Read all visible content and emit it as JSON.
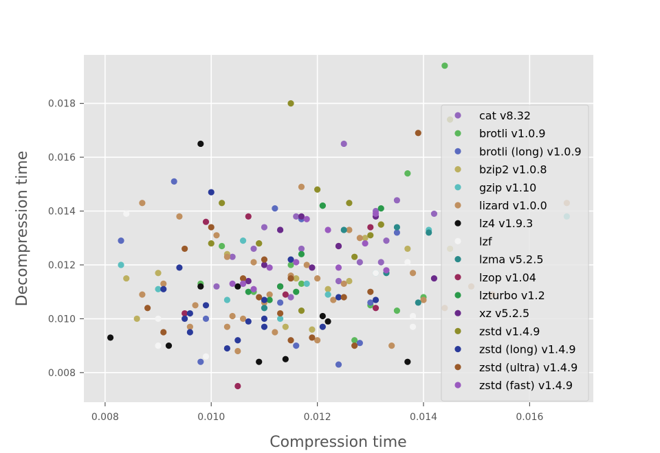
{
  "chart_data": {
    "type": "scatter",
    "title": "",
    "xlabel": "Compression time",
    "ylabel": "Decompression time",
    "xlim": [
      0.0076,
      0.0172
    ],
    "ylim": [
      0.0069,
      0.0198
    ],
    "xticks": [
      0.008,
      0.01,
      0.012,
      0.014,
      0.016
    ],
    "xtick_labels": [
      "0.008",
      "0.010",
      "0.012",
      "0.014",
      "0.016"
    ],
    "yticks": [
      0.008,
      0.01,
      0.012,
      0.014,
      0.016,
      0.018
    ],
    "ytick_labels": [
      "0.008",
      "0.010",
      "0.012",
      "0.014",
      "0.016",
      "0.018"
    ],
    "grid": true,
    "legend_position": "right",
    "series": [
      {
        "name": "cat v8.32",
        "color": "#9467bd",
        "points": [
          [
            0.0125,
            0.0165
          ],
          [
            0.011,
            0.0134
          ],
          [
            0.0113,
            0.0133
          ],
          [
            0.0116,
            0.0138
          ],
          [
            0.0108,
            0.0126
          ],
          [
            0.0131,
            0.014
          ],
          [
            0.0135,
            0.0144
          ],
          [
            0.0142,
            0.0139
          ],
          [
            0.0104,
            0.0123
          ],
          [
            0.0117,
            0.0126
          ],
          [
            0.0132,
            0.0121
          ],
          [
            0.0124,
            0.0114
          ],
          [
            0.0115,
            0.0108
          ],
          [
            0.0106,
            0.0113
          ],
          [
            0.0133,
            0.0129
          ],
          [
            0.0119,
            0.0119
          ],
          [
            0.0128,
            0.0121
          ],
          [
            0.0101,
            0.0112
          ]
        ]
      },
      {
        "name": "brotli v1.0.9",
        "color": "#5cb85c",
        "points": [
          [
            0.0144,
            0.0194
          ],
          [
            0.0137,
            0.0154
          ],
          [
            0.0121,
            0.0142
          ],
          [
            0.0102,
            0.0127
          ],
          [
            0.0115,
            0.012
          ],
          [
            0.0108,
            0.011
          ],
          [
            0.0127,
            0.0092
          ],
          [
            0.0135,
            0.0103
          ],
          [
            0.0098,
            0.0113
          ],
          [
            0.0117,
            0.0113
          ],
          [
            0.013,
            0.0105
          ],
          [
            0.014,
            0.0108
          ]
        ]
      },
      {
        "name": "brotli (long) v1.0.9",
        "color": "#5b6bbf",
        "points": [
          [
            0.0093,
            0.0151
          ],
          [
            0.0083,
            0.0129
          ],
          [
            0.0112,
            0.0141
          ],
          [
            0.0098,
            0.0084
          ],
          [
            0.0117,
            0.0137
          ],
          [
            0.0135,
            0.0132
          ],
          [
            0.0116,
            0.009
          ],
          [
            0.0124,
            0.0083
          ],
          [
            0.0128,
            0.0091
          ],
          [
            0.0113,
            0.0106
          ],
          [
            0.013,
            0.0106
          ],
          [
            0.0099,
            0.01
          ]
        ]
      },
      {
        "name": "bzip2 v1.0.8",
        "color": "#bcb060",
        "points": [
          [
            0.0084,
            0.0115
          ],
          [
            0.0086,
            0.01
          ],
          [
            0.009,
            0.0117
          ],
          [
            0.0103,
            0.0124
          ],
          [
            0.0109,
            0.0128
          ],
          [
            0.0116,
            0.0115
          ],
          [
            0.0122,
            0.0111
          ],
          [
            0.0129,
            0.013
          ],
          [
            0.0137,
            0.0126
          ],
          [
            0.0145,
            0.0126
          ],
          [
            0.0119,
            0.0096
          ],
          [
            0.0114,
            0.0097
          ],
          [
            0.0126,
            0.0114
          ],
          [
            0.0132,
            0.0135
          ]
        ]
      },
      {
        "name": "gzip v1.10",
        "color": "#5bbfbf",
        "points": [
          [
            0.0083,
            0.012
          ],
          [
            0.009,
            0.0111
          ],
          [
            0.0106,
            0.0129
          ],
          [
            0.0103,
            0.0107
          ],
          [
            0.0113,
            0.01
          ],
          [
            0.0122,
            0.0109
          ],
          [
            0.0131,
            0.0117
          ],
          [
            0.0141,
            0.0133
          ],
          [
            0.0167,
            0.0138
          ],
          [
            0.011,
            0.0104
          ],
          [
            0.0118,
            0.0113
          ]
        ]
      },
      {
        "name": "lizard v1.0.0",
        "color": "#c09060",
        "points": [
          [
            0.0087,
            0.0143
          ],
          [
            0.0094,
            0.0138
          ],
          [
            0.0087,
            0.0109
          ],
          [
            0.0091,
            0.0113
          ],
          [
            0.0097,
            0.0105
          ],
          [
            0.0103,
            0.0123
          ],
          [
            0.0104,
            0.0101
          ],
          [
            0.0106,
            0.01
          ],
          [
            0.0103,
            0.0097
          ],
          [
            0.011,
            0.0106
          ],
          [
            0.0112,
            0.0095
          ],
          [
            0.0115,
            0.0116
          ],
          [
            0.0117,
            0.0149
          ],
          [
            0.012,
            0.0115
          ],
          [
            0.0123,
            0.0107
          ],
          [
            0.0125,
            0.0113
          ],
          [
            0.0128,
            0.013
          ],
          [
            0.0134,
            0.009
          ],
          [
            0.0138,
            0.0117
          ],
          [
            0.0144,
            0.0104
          ],
          [
            0.0149,
            0.0112
          ],
          [
            0.0153,
            0.0109
          ],
          [
            0.0096,
            0.0097
          ],
          [
            0.0101,
            0.0131
          ],
          [
            0.0108,
            0.0121
          ],
          [
            0.0118,
            0.012
          ],
          [
            0.0126,
            0.0133
          ],
          [
            0.014,
            0.0107
          ],
          [
            0.0111,
            0.0109
          ],
          [
            0.0105,
            0.0088
          ],
          [
            0.012,
            0.0092
          ],
          [
            0.0167,
            0.0143
          ]
        ]
      },
      {
        "name": "lz4 v1.9.3",
        "color": "#111111",
        "points": [
          [
            0.0081,
            0.0093
          ],
          [
            0.0092,
            0.009
          ],
          [
            0.0098,
            0.0165
          ],
          [
            0.0098,
            0.0112
          ],
          [
            0.0109,
            0.0084
          ],
          [
            0.0114,
            0.0085
          ],
          [
            0.0121,
            0.0101
          ],
          [
            0.0122,
            0.0099
          ],
          [
            0.0137,
            0.0084
          ],
          [
            0.0105,
            0.0112
          ],
          [
            0.0113,
            0.0112
          ]
        ]
      },
      {
        "name": "lzf",
        "color": "#f4f4f4",
        "points": [
          [
            0.0084,
            0.0139
          ],
          [
            0.009,
            0.01
          ],
          [
            0.009,
            0.009
          ],
          [
            0.0099,
            0.0086
          ],
          [
            0.0138,
            0.0101
          ],
          [
            0.0138,
            0.0097
          ],
          [
            0.0131,
            0.0117
          ],
          [
            0.0137,
            0.0121
          ]
        ]
      },
      {
        "name": "lzma v5.2.5",
        "color": "#2a8a8a",
        "points": [
          [
            0.0139,
            0.0106
          ],
          [
            0.0141,
            0.0132
          ],
          [
            0.0135,
            0.0134
          ],
          [
            0.0125,
            0.0133
          ],
          [
            0.011,
            0.0104
          ],
          [
            0.0133,
            0.0117
          ]
        ]
      },
      {
        "name": "lzop v1.04",
        "color": "#9a2a5a",
        "points": [
          [
            0.0105,
            0.0075
          ],
          [
            0.0099,
            0.0136
          ],
          [
            0.0107,
            0.0138
          ],
          [
            0.0095,
            0.0102
          ],
          [
            0.0114,
            0.0109
          ],
          [
            0.0124,
            0.0127
          ],
          [
            0.013,
            0.0134
          ],
          [
            0.0131,
            0.0104
          ]
        ]
      },
      {
        "name": "lzturbo v1.2",
        "color": "#2a9a4a",
        "points": [
          [
            0.0121,
            0.0142
          ],
          [
            0.0117,
            0.0124
          ],
          [
            0.0132,
            0.0141
          ],
          [
            0.0111,
            0.0107
          ],
          [
            0.0116,
            0.011
          ],
          [
            0.0107,
            0.011
          ],
          [
            0.0113,
            0.0112
          ]
        ]
      },
      {
        "name": "xz v5.2.5",
        "color": "#6a2a8a",
        "points": [
          [
            0.0117,
            0.0138
          ],
          [
            0.0113,
            0.0133
          ],
          [
            0.0107,
            0.0114
          ],
          [
            0.011,
            0.012
          ],
          [
            0.0119,
            0.0119
          ],
          [
            0.0124,
            0.0127
          ],
          [
            0.0131,
            0.0138
          ],
          [
            0.0142,
            0.0115
          ]
        ]
      },
      {
        "name": "zstd v1.4.9",
        "color": "#8e8e2a",
        "points": [
          [
            0.0115,
            0.018
          ],
          [
            0.0145,
            0.0174
          ],
          [
            0.0102,
            0.0143
          ],
          [
            0.0126,
            0.0143
          ],
          [
            0.012,
            0.0148
          ],
          [
            0.01,
            0.0128
          ],
          [
            0.0109,
            0.0128
          ],
          [
            0.0127,
            0.0123
          ],
          [
            0.0132,
            0.0135
          ],
          [
            0.013,
            0.0131
          ],
          [
            0.0117,
            0.0103
          ]
        ]
      },
      {
        "name": "zstd (long) v1.4.9",
        "color": "#2a3a9a",
        "points": [
          [
            0.01,
            0.0147
          ],
          [
            0.0094,
            0.0119
          ],
          [
            0.0091,
            0.0111
          ],
          [
            0.0096,
            0.0102
          ],
          [
            0.0096,
            0.0095
          ],
          [
            0.0099,
            0.0105
          ],
          [
            0.0103,
            0.0089
          ],
          [
            0.0105,
            0.0092
          ],
          [
            0.0107,
            0.0099
          ],
          [
            0.011,
            0.01
          ],
          [
            0.011,
            0.0107
          ],
          [
            0.0115,
            0.0122
          ],
          [
            0.0121,
            0.0097
          ],
          [
            0.0124,
            0.0108
          ],
          [
            0.0131,
            0.0107
          ],
          [
            0.011,
            0.0097
          ],
          [
            0.0095,
            0.01
          ]
        ]
      },
      {
        "name": "zstd (ultra) v1.4.9",
        "color": "#9a5a2a",
        "points": [
          [
            0.0139,
            0.0169
          ],
          [
            0.01,
            0.0134
          ],
          [
            0.0095,
            0.0126
          ],
          [
            0.011,
            0.0122
          ],
          [
            0.0091,
            0.0095
          ],
          [
            0.0088,
            0.0104
          ],
          [
            0.0106,
            0.0115
          ],
          [
            0.0115,
            0.0115
          ],
          [
            0.0125,
            0.0108
          ],
          [
            0.013,
            0.011
          ],
          [
            0.0127,
            0.009
          ],
          [
            0.0119,
            0.0093
          ],
          [
            0.0109,
            0.0108
          ],
          [
            0.0113,
            0.0102
          ],
          [
            0.0115,
            0.0092
          ]
        ]
      },
      {
        "name": "zstd (fast) v1.4.9",
        "color": "#9a5abf",
        "points": [
          [
            0.0106,
            0.0113
          ],
          [
            0.0111,
            0.0119
          ],
          [
            0.0118,
            0.0137
          ],
          [
            0.0124,
            0.0119
          ],
          [
            0.0133,
            0.0118
          ],
          [
            0.0129,
            0.0128
          ],
          [
            0.0104,
            0.0113
          ],
          [
            0.0131,
            0.0139
          ],
          [
            0.0116,
            0.0121
          ],
          [
            0.0108,
            0.0111
          ],
          [
            0.0122,
            0.0133
          ]
        ]
      }
    ]
  }
}
